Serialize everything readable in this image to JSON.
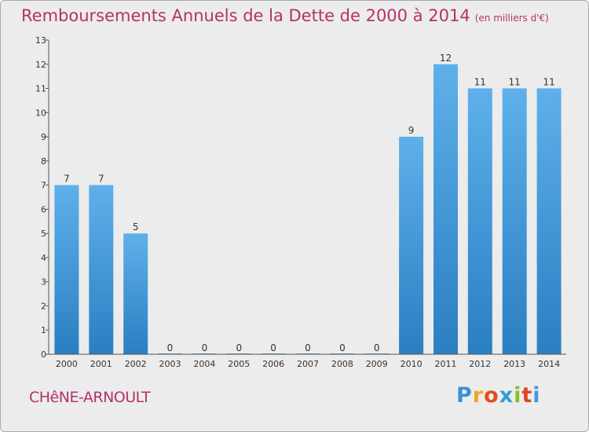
{
  "title": "Remboursements Annuels de la Dette de 2000 à 2014",
  "unit": "(en milliers d'€)",
  "commune": "CHêNE-ARNOULT",
  "logo": {
    "letters": [
      "P",
      "r",
      "o",
      "x",
      "i",
      "t",
      "i"
    ],
    "colors": [
      "#3d8fd6",
      "#f2a51e",
      "#e24d1f",
      "#2e9fd9",
      "#8bbd2b",
      "#e0431f",
      "#3f9ad8"
    ]
  },
  "colors": {
    "bar_top": "#5fb0ea",
    "bar_bottom": "#2a7fc2",
    "accent": "#b5316c"
  },
  "chart_data": {
    "type": "bar",
    "categories": [
      "2000",
      "2001",
      "2002",
      "2003",
      "2004",
      "2005",
      "2006",
      "2007",
      "2008",
      "2009",
      "2010",
      "2011",
      "2012",
      "2013",
      "2014"
    ],
    "values": [
      7,
      7,
      5,
      0,
      0,
      0,
      0,
      0,
      0,
      0,
      9,
      12,
      11,
      11,
      11
    ],
    "value_labels": [
      "7",
      "7",
      "5",
      "0",
      "0",
      "0",
      "0",
      "0",
      "0",
      "0",
      "9",
      "12",
      "11",
      "11",
      "11"
    ],
    "y_ticks": [
      "0",
      "1",
      "2",
      "3",
      "4",
      "5",
      "6",
      "7",
      "8",
      "9",
      "10",
      "11",
      "12",
      "13"
    ],
    "ylim": [
      0,
      13
    ],
    "grid": false,
    "legend": "none"
  }
}
